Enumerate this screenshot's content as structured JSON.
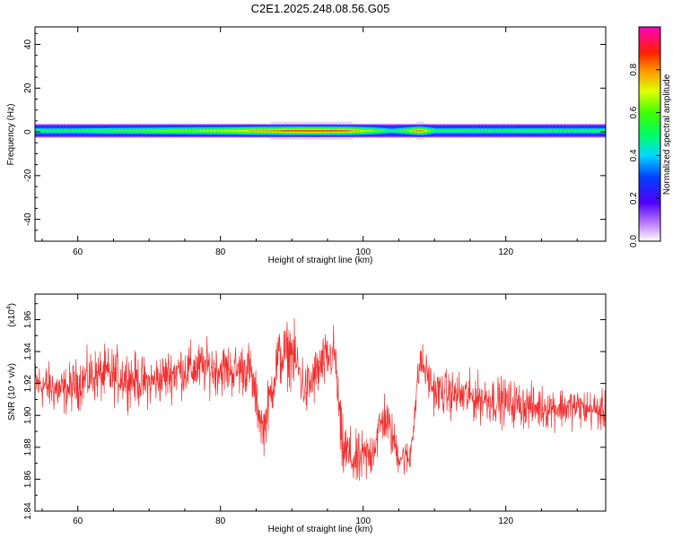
{
  "title": "C2E1.2025.248.08.56.G05",
  "chart_data": [
    {
      "type": "heatmap",
      "xlabel": "Height of straight line (km)",
      "ylabel": "Frequency (Hz)",
      "xlim": [
        54,
        134
      ],
      "ylim": [
        -50,
        48
      ],
      "xticks": [
        "60",
        "80",
        "100",
        "120"
      ],
      "yticks": [
        "40",
        "20",
        "0",
        "-20",
        "-40"
      ],
      "colorbar": {
        "label": "Normalized spectral amplitude",
        "range": [
          0,
          1
        ],
        "ticks": [
          "0.0",
          "0.2",
          "0.4",
          "0.6",
          "0.8"
        ]
      },
      "band": {
        "center_hz": 0.5,
        "half_width_hz": 3,
        "profile": [
          {
            "x": 54,
            "amp": 0.5
          },
          {
            "x": 60,
            "amp": 0.5
          },
          {
            "x": 66,
            "amp": 0.55
          },
          {
            "x": 72,
            "amp": 0.6
          },
          {
            "x": 78,
            "amp": 0.65
          },
          {
            "x": 82,
            "amp": 0.7
          },
          {
            "x": 86,
            "amp": 0.78
          },
          {
            "x": 90,
            "amp": 0.85
          },
          {
            "x": 94,
            "amp": 0.85
          },
          {
            "x": 98,
            "amp": 0.82
          },
          {
            "x": 102,
            "amp": 0.6
          },
          {
            "x": 104,
            "amp": 0.45
          },
          {
            "x": 106,
            "amp": 0.6
          },
          {
            "x": 108,
            "amp": 0.85
          },
          {
            "x": 110,
            "amp": 0.5
          },
          {
            "x": 116,
            "amp": 0.5
          },
          {
            "x": 124,
            "amp": 0.5
          },
          {
            "x": 134,
            "amp": 0.5
          }
        ]
      }
    },
    {
      "type": "line",
      "xlabel": "Height of straight line (km)",
      "ylabel": "SNR (10 * v/v)",
      "yscale_label": "(x10",
      "yscale_exp": "4",
      "yscale_close": ")",
      "xlim": [
        54,
        134
      ],
      "ylim": [
        1.84,
        1.976
      ],
      "xticks": [
        "60",
        "80",
        "100",
        "120"
      ],
      "yticks": [
        "1.84",
        "1.86",
        "1.88",
        "1.90",
        "1.92",
        "1.94",
        "1.96"
      ],
      "line_color": "#f03030",
      "series_envelope": [
        {
          "x": 54,
          "mean": 1.92,
          "amp": 0.022
        },
        {
          "x": 58,
          "mean": 1.915,
          "amp": 0.022
        },
        {
          "x": 62,
          "mean": 1.925,
          "amp": 0.024
        },
        {
          "x": 66,
          "mean": 1.925,
          "amp": 0.026
        },
        {
          "x": 70,
          "mean": 1.92,
          "amp": 0.022
        },
        {
          "x": 74,
          "mean": 1.928,
          "amp": 0.024
        },
        {
          "x": 78,
          "mean": 1.93,
          "amp": 0.024
        },
        {
          "x": 82,
          "mean": 1.928,
          "amp": 0.024
        },
        {
          "x": 84,
          "mean": 1.93,
          "amp": 0.024
        },
        {
          "x": 86,
          "mean": 1.89,
          "amp": 0.022
        },
        {
          "x": 88,
          "mean": 1.935,
          "amp": 0.028
        },
        {
          "x": 90,
          "mean": 1.94,
          "amp": 0.03
        },
        {
          "x": 92,
          "mean": 1.915,
          "amp": 0.026
        },
        {
          "x": 94,
          "mean": 1.93,
          "amp": 0.026
        },
        {
          "x": 96,
          "mean": 1.94,
          "amp": 0.024
        },
        {
          "x": 97,
          "mean": 1.88,
          "amp": 0.03
        },
        {
          "x": 99,
          "mean": 1.87,
          "amp": 0.026
        },
        {
          "x": 101,
          "mean": 1.875,
          "amp": 0.024
        },
        {
          "x": 103,
          "mean": 1.9,
          "amp": 0.024
        },
        {
          "x": 105,
          "mean": 1.875,
          "amp": 0.018
        },
        {
          "x": 106.5,
          "mean": 1.872,
          "amp": 0.016
        },
        {
          "x": 108,
          "mean": 1.935,
          "amp": 0.018
        },
        {
          "x": 110,
          "mean": 1.915,
          "amp": 0.02
        },
        {
          "x": 114,
          "mean": 1.912,
          "amp": 0.022
        },
        {
          "x": 118,
          "mean": 1.91,
          "amp": 0.022
        },
        {
          "x": 124,
          "mean": 1.905,
          "amp": 0.02
        },
        {
          "x": 130,
          "mean": 1.905,
          "amp": 0.018
        },
        {
          "x": 134,
          "mean": 1.902,
          "amp": 0.018
        }
      ]
    }
  ]
}
